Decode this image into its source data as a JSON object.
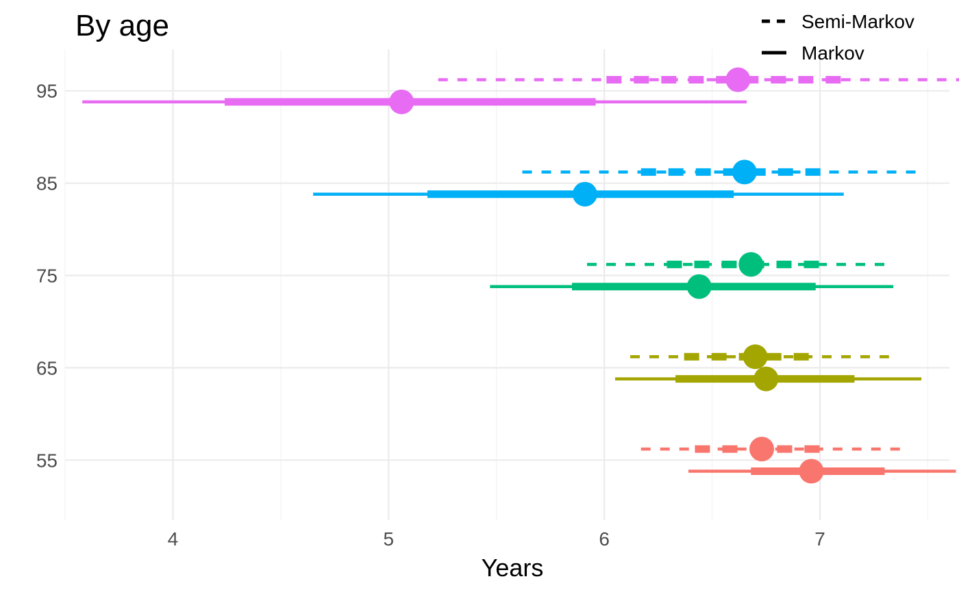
{
  "chart_data": {
    "type": "interval",
    "title": "By age",
    "xlabel": "Years",
    "ylabel": "",
    "xlim": [
      3.5,
      7.6
    ],
    "ylim": [
      48.5,
      99.5
    ],
    "x_ticks": [
      "4",
      "5",
      "6",
      "7"
    ],
    "y_ticks": [
      "55",
      "65",
      "75",
      "85",
      "95"
    ],
    "grid": true,
    "legend": {
      "placement": "top-right",
      "entries": [
        {
          "label": "Semi-Markov",
          "linetype": "dashed"
        },
        {
          "label": "Markov",
          "linetype": "solid"
        }
      ]
    },
    "groups": [
      {
        "age": 55,
        "color": "#F8766D"
      },
      {
        "age": 65,
        "color": "#A3A500"
      },
      {
        "age": 75,
        "color": "#00BF7D"
      },
      {
        "age": 85,
        "color": "#00B0F6"
      },
      {
        "age": 95,
        "color": "#E76BF3"
      }
    ],
    "series": [
      {
        "model": "Semi-Markov",
        "age": 55,
        "y": 56.2,
        "estimate": 6.73,
        "inner": [
          6.42,
          7.02
        ],
        "outer": [
          6.17,
          7.38
        ]
      },
      {
        "model": "Markov",
        "age": 55,
        "y": 53.8,
        "estimate": 6.96,
        "inner": [
          6.68,
          7.3
        ],
        "outer": [
          6.39,
          7.63
        ]
      },
      {
        "model": "Semi-Markov",
        "age": 65,
        "y": 66.2,
        "estimate": 6.7,
        "inner": [
          6.37,
          6.98
        ],
        "outer": [
          6.12,
          7.32
        ]
      },
      {
        "model": "Markov",
        "age": 65,
        "y": 63.8,
        "estimate": 6.75,
        "inner": [
          6.33,
          7.16
        ],
        "outer": [
          6.05,
          7.47
        ]
      },
      {
        "model": "Semi-Markov",
        "age": 75,
        "y": 76.2,
        "estimate": 6.68,
        "inner": [
          6.29,
          7.01
        ],
        "outer": [
          5.92,
          7.33
        ]
      },
      {
        "model": "Markov",
        "age": 75,
        "y": 73.8,
        "estimate": 6.44,
        "inner": [
          5.85,
          6.98
        ],
        "outer": [
          5.47,
          7.34
        ]
      },
      {
        "model": "Semi-Markov",
        "age": 85,
        "y": 86.2,
        "estimate": 6.65,
        "inner": [
          6.17,
          7.04
        ],
        "outer": [
          5.62,
          7.48
        ]
      },
      {
        "model": "Markov",
        "age": 85,
        "y": 83.8,
        "estimate": 5.91,
        "inner": [
          5.18,
          6.6
        ],
        "outer": [
          4.65,
          7.11
        ]
      },
      {
        "model": "Semi-Markov",
        "age": 95,
        "y": 96.2,
        "estimate": 6.62,
        "inner": [
          6.01,
          7.15
        ],
        "outer": [
          5.23,
          7.66
        ]
      },
      {
        "model": "Markov",
        "age": 95,
        "y": 93.8,
        "estimate": 5.06,
        "inner": [
          4.24,
          5.96
        ],
        "outer": [
          3.58,
          6.66
        ]
      }
    ]
  }
}
